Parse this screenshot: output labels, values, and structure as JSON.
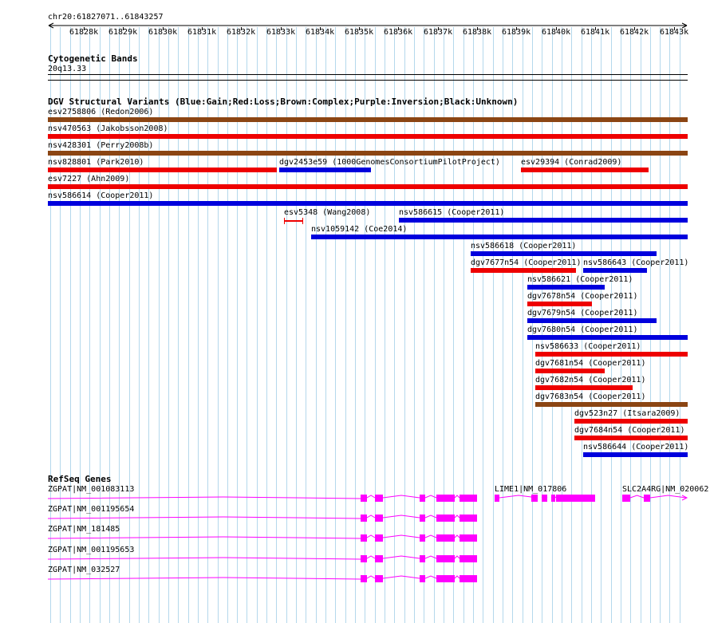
{
  "ruler": {
    "location": "chr20:61827071..61843257",
    "ticks": [
      "61828k",
      "61829k",
      "61830k",
      "61831k",
      "61832k",
      "61833k",
      "61834k",
      "61835k",
      "61836k",
      "61837k",
      "61838k",
      "61839k",
      "61840k",
      "61841k",
      "61842k",
      "61843k"
    ]
  },
  "cytobands": {
    "title": "Cytogenetic Bands",
    "band": "20q13.33"
  },
  "dgv": {
    "title": "DGV Structural Variants (Blue:Gain;Red:Loss;Brown:Complex;Purple:Inversion;Black:Unknown)",
    "colors": {
      "gain": "#0000dd",
      "loss": "#ee0000",
      "complex": "#8b4513"
    },
    "rows": [
      [
        {
          "label": "esv2758806 (Redon2006)",
          "type": "complex"
        }
      ],
      [
        {
          "label": "nsv470563 (Jakobsson2008)",
          "type": "loss"
        }
      ],
      [
        {
          "label": "nsv428301 (Perry2008b)",
          "type": "complex"
        }
      ],
      [
        {
          "label": "nsv828801 (Park2010)",
          "type": "loss"
        },
        {
          "label": "dgv2453e59 (1000GenomesConsortiumPilotProject)",
          "type": "gain"
        },
        {
          "label": "esv29394 (Conrad2009)",
          "type": "loss"
        }
      ],
      [
        {
          "label": "esv7227 (Ahn2009)",
          "type": "loss"
        }
      ],
      [
        {
          "label": "nsv586614 (Cooper2011)",
          "type": "gain"
        }
      ],
      [
        {
          "label": "esv5348 (Wang2008)",
          "type": "loss"
        },
        {
          "label": "nsv586615 (Cooper2011)",
          "type": "gain"
        }
      ],
      [
        {
          "label": "nsv1059142 (Coe2014)",
          "type": "gain"
        }
      ],
      [
        {
          "label": "nsv586618 (Cooper2011)",
          "type": "gain"
        }
      ],
      [
        {
          "label": "dgv7677n54 (Cooper2011)",
          "type": "loss"
        },
        {
          "label": "nsv586643 (Cooper2011)",
          "type": "gain"
        }
      ],
      [
        {
          "label": "nsv586621 (Cooper2011)",
          "type": "gain"
        }
      ],
      [
        {
          "label": "dgv7678n54 (Cooper2011)",
          "type": "loss"
        }
      ],
      [
        {
          "label": "dgv7679n54 (Cooper2011)",
          "type": "gain"
        }
      ],
      [
        {
          "label": "dgv7680n54 (Cooper2011)",
          "type": "gain"
        }
      ],
      [
        {
          "label": "nsv586633 (Cooper2011)",
          "type": "loss"
        }
      ],
      [
        {
          "label": "dgv7681n54 (Cooper2011)",
          "type": "loss"
        }
      ],
      [
        {
          "label": "dgv7682n54 (Cooper2011)",
          "type": "loss"
        }
      ],
      [
        {
          "label": "dgv7683n54 (Cooper2011)",
          "type": "complex"
        }
      ],
      [
        {
          "label": "dgv523n27 (Itsara2009)",
          "type": "loss"
        }
      ],
      [
        {
          "label": "dgv7684n54 (Cooper2011)",
          "type": "loss"
        }
      ],
      [
        {
          "label": "nsv586644 (Cooper2011)",
          "type": "gain"
        }
      ]
    ]
  },
  "genes": {
    "title": "RefSeq Genes",
    "color": "#ff00ff",
    "transcripts": [
      {
        "label": "ZGPAT|NM_001083113"
      },
      {
        "label": "LIME1|NM_017806"
      },
      {
        "label": "SLC2A4RG|NM_020062"
      },
      {
        "label": "ZGPAT|NM_001195654"
      },
      {
        "label": "ZGPAT|NM_181485"
      },
      {
        "label": "ZGPAT|NM_001195653"
      },
      {
        "label": "ZGPAT|NM_032527"
      }
    ]
  }
}
